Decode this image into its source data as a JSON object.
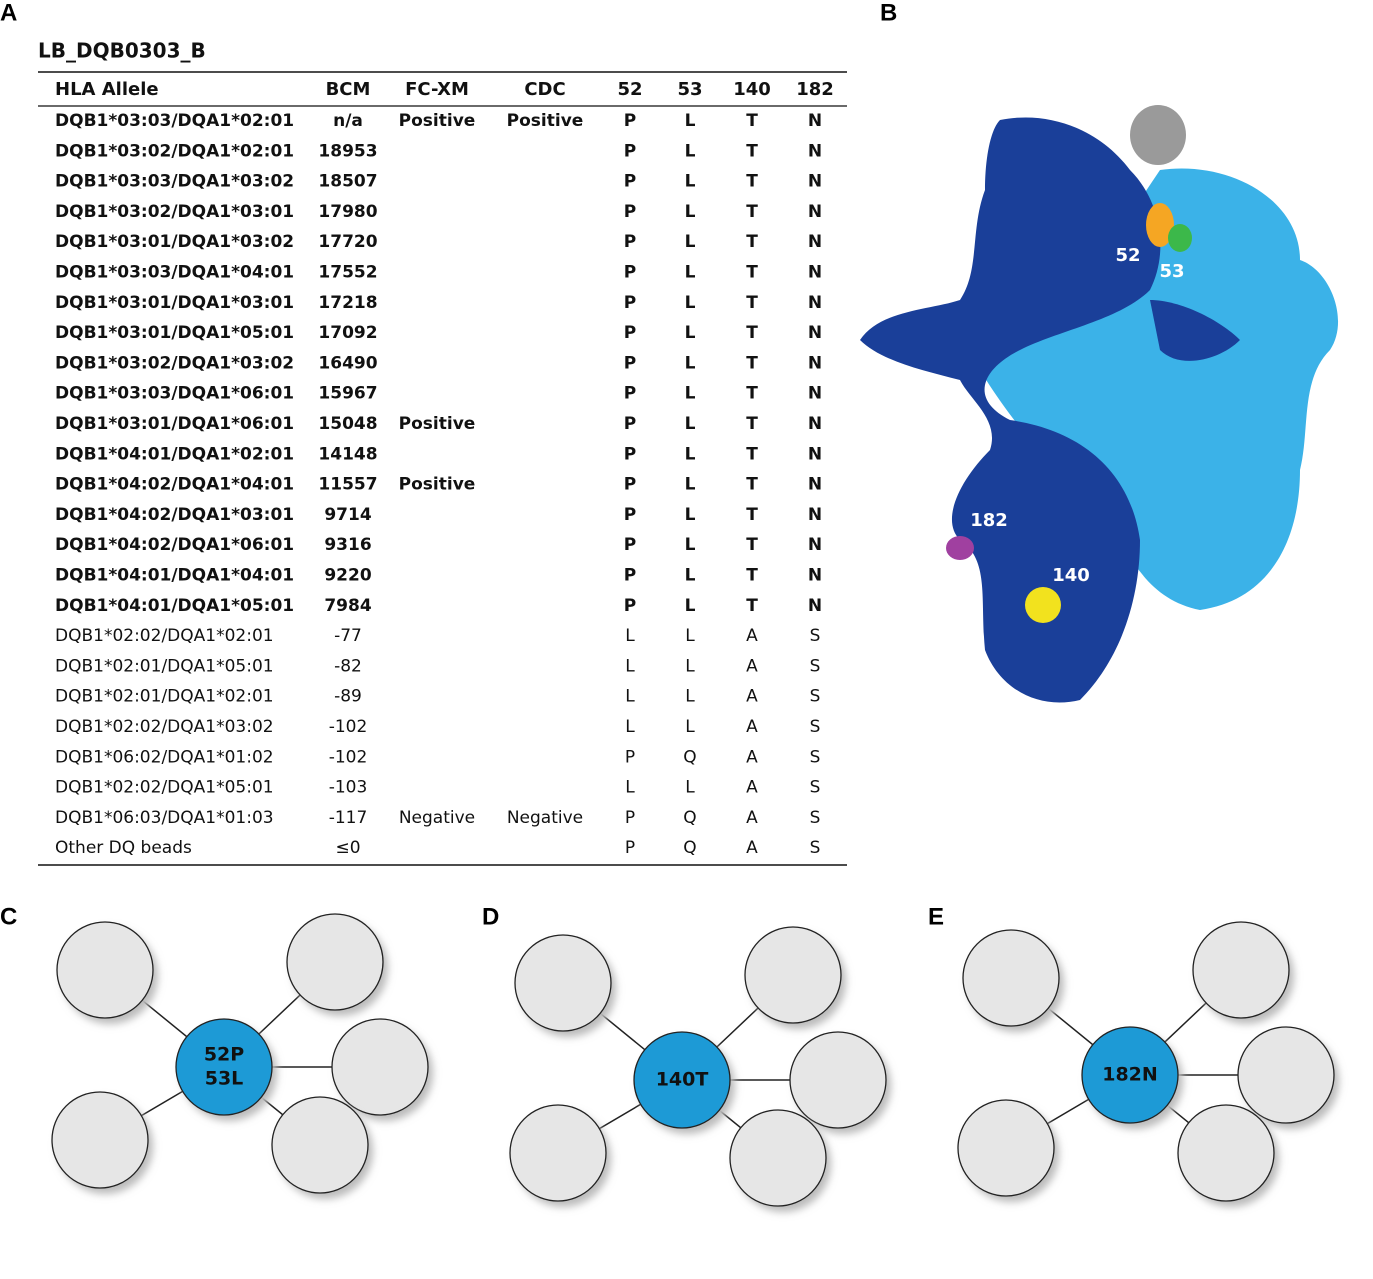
{
  "panels": {
    "a": "A",
    "b": "B",
    "c": "C",
    "d": "D",
    "e": "E"
  },
  "table": {
    "title": "LB_DQB0303_B",
    "headers": [
      "HLA Allele",
      "BCM",
      "FC-XM",
      "CDC",
      "52",
      "53",
      "140",
      "182"
    ],
    "rows": [
      {
        "bold": true,
        "cells": [
          "DQB1*03:03/DQA1*02:01",
          "n/a",
          "Positive",
          "Positive",
          "P",
          "L",
          "T",
          "N"
        ]
      },
      {
        "bold": true,
        "cells": [
          "DQB1*03:02/DQA1*02:01",
          "18953",
          "",
          "",
          "P",
          "L",
          "T",
          "N"
        ]
      },
      {
        "bold": true,
        "cells": [
          "DQB1*03:03/DQA1*03:02",
          "18507",
          "",
          "",
          "P",
          "L",
          "T",
          "N"
        ]
      },
      {
        "bold": true,
        "cells": [
          "DQB1*03:02/DQA1*03:01",
          "17980",
          "",
          "",
          "P",
          "L",
          "T",
          "N"
        ]
      },
      {
        "bold": true,
        "cells": [
          "DQB1*03:01/DQA1*03:02",
          "17720",
          "",
          "",
          "P",
          "L",
          "T",
          "N"
        ]
      },
      {
        "bold": true,
        "cells": [
          "DQB1*03:03/DQA1*04:01",
          "17552",
          "",
          "",
          "P",
          "L",
          "T",
          "N"
        ]
      },
      {
        "bold": true,
        "cells": [
          "DQB1*03:01/DQA1*03:01",
          "17218",
          "",
          "",
          "P",
          "L",
          "T",
          "N"
        ]
      },
      {
        "bold": true,
        "cells": [
          "DQB1*03:01/DQA1*05:01",
          "17092",
          "",
          "",
          "P",
          "L",
          "T",
          "N"
        ]
      },
      {
        "bold": true,
        "cells": [
          "DQB1*03:02/DQA1*03:02",
          "16490",
          "",
          "",
          "P",
          "L",
          "T",
          "N"
        ]
      },
      {
        "bold": true,
        "cells": [
          "DQB1*03:03/DQA1*06:01",
          "15967",
          "",
          "",
          "P",
          "L",
          "T",
          "N"
        ]
      },
      {
        "bold": true,
        "cells": [
          "DQB1*03:01/DQA1*06:01",
          "15048",
          "Positive",
          "",
          "P",
          "L",
          "T",
          "N"
        ]
      },
      {
        "bold": true,
        "cells": [
          "DQB1*04:01/DQA1*02:01",
          "14148",
          "",
          "",
          "P",
          "L",
          "T",
          "N"
        ]
      },
      {
        "bold": true,
        "cells": [
          "DQB1*04:02/DQA1*04:01",
          "11557",
          "Positive",
          "",
          "P",
          "L",
          "T",
          "N"
        ]
      },
      {
        "bold": true,
        "cells": [
          "DQB1*04:02/DQA1*03:01",
          "9714",
          "",
          "",
          "P",
          "L",
          "T",
          "N"
        ]
      },
      {
        "bold": true,
        "cells": [
          "DQB1*04:02/DQA1*06:01",
          "9316",
          "",
          "",
          "P",
          "L",
          "T",
          "N"
        ]
      },
      {
        "bold": true,
        "cells": [
          "DQB1*04:01/DQA1*04:01",
          "9220",
          "",
          "",
          "P",
          "L",
          "T",
          "N"
        ]
      },
      {
        "bold": true,
        "cells": [
          "DQB1*04:01/DQA1*05:01",
          "7984",
          "",
          "",
          "P",
          "L",
          "T",
          "N"
        ]
      },
      {
        "bold": false,
        "cells": [
          "DQB1*02:02/DQA1*02:01",
          "-77",
          "",
          "",
          "L",
          "L",
          "A",
          "S"
        ]
      },
      {
        "bold": false,
        "cells": [
          "DQB1*02:01/DQA1*05:01",
          "-82",
          "",
          "",
          "L",
          "L",
          "A",
          "S"
        ]
      },
      {
        "bold": false,
        "cells": [
          "DQB1*02:01/DQA1*02:01",
          "-89",
          "",
          "",
          "L",
          "L",
          "A",
          "S"
        ]
      },
      {
        "bold": false,
        "cells": [
          "DQB1*02:02/DQA1*03:02",
          "-102",
          "",
          "",
          "L",
          "L",
          "A",
          "S"
        ]
      },
      {
        "bold": false,
        "cells": [
          "DQB1*06:02/DQA1*01:02",
          "-102",
          "",
          "",
          "P",
          "Q",
          "A",
          "S"
        ]
      },
      {
        "bold": false,
        "cells": [
          "DQB1*02:02/DQA1*05:01",
          "-103",
          "",
          "",
          "L",
          "L",
          "A",
          "S"
        ]
      },
      {
        "bold": false,
        "cells": [
          "DQB1*06:03/DQA1*01:03",
          "-117",
          "Negative",
          "Negative",
          "P",
          "Q",
          "A",
          "S"
        ]
      },
      {
        "bold": false,
        "cells": [
          "Other DQ beads",
          "≤0",
          "",
          "",
          "P",
          "Q",
          "A",
          "S"
        ]
      }
    ]
  },
  "protein": {
    "labels": [
      "52",
      "53",
      "182",
      "140"
    ]
  },
  "diagrams": [
    {
      "center_lines": [
        "52P",
        "53L"
      ]
    },
    {
      "center_lines": [
        "140T"
      ]
    },
    {
      "center_lines": [
        "182N"
      ]
    }
  ]
}
